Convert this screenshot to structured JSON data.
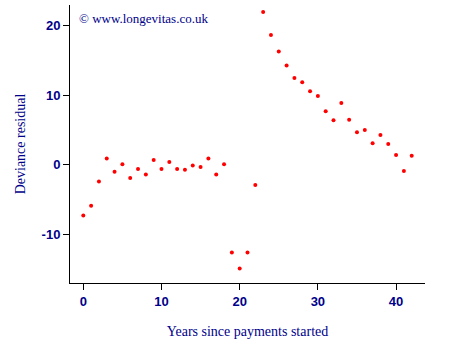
{
  "chart_data": {
    "type": "scatter",
    "x_label": "Years since payments started",
    "y_label": "Deviance residual",
    "annotations": [
      "© www.longevitas.co.uk"
    ],
    "x": [
      0,
      1,
      2,
      3,
      4,
      5,
      6,
      7,
      8,
      9,
      10,
      11,
      12,
      13,
      14,
      15,
      16,
      17,
      18,
      19,
      20,
      21,
      22,
      23,
      24,
      25,
      26,
      27,
      28,
      29,
      30,
      31,
      32,
      33,
      34,
      35,
      36,
      37,
      38,
      39,
      40,
      41,
      42
    ],
    "values": [
      -7.3,
      -5.9,
      -2.4,
      0.9,
      -1.0,
      0.1,
      -1.9,
      -0.6,
      -1.4,
      0.7,
      -0.6,
      0.4,
      -0.6,
      -0.7,
      -0.1,
      -0.3,
      0.9,
      -1.4,
      0.1,
      -12.6,
      -14.9,
      -12.6,
      -2.9,
      22.0,
      18.7,
      16.3,
      14.3,
      12.5,
      11.9,
      10.6,
      9.9,
      7.7,
      6.4,
      8.9,
      6.5,
      4.7,
      5.0,
      3.1,
      4.3,
      3.0,
      1.4,
      -0.9,
      1.3
    ],
    "color": "#ff0000",
    "marker": "circle",
    "xlim": [
      -1.7,
      43.7
    ],
    "xticks": [
      0,
      10,
      20,
      30,
      40
    ],
    "ylim": [
      -17,
      23
    ],
    "yticks": [
      -10,
      0,
      10,
      20
    ],
    "grid": false
  }
}
